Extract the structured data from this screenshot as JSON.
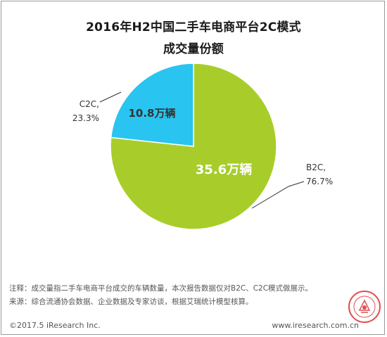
{
  "chart_data": {
    "type": "pie",
    "title_line1": "2016年H2中国二手车电商平台2C模式",
    "title_line2": "成交量份额",
    "slices": [
      {
        "name": "B2C,",
        "percent_label": "76.7%",
        "value": 35.6,
        "value_label": "35.6万辆",
        "share": 76.7,
        "color": "#a8cd2a"
      },
      {
        "name": "C2C,",
        "percent_label": "23.3%",
        "value": 10.8,
        "value_label": "10.8万辆",
        "share": 23.3,
        "color": "#29c4ef"
      }
    ]
  },
  "notes": {
    "note": "注释：成交量指二手车电商平台成交的车辆数量，本次报告数据仅对B2C、C2C模式做展示。",
    "source": "来源：综合流通协会数据、企业数据及专家访谈，根据艾瑞统计模型核算。"
  },
  "footer": {
    "copyright": "©2017.5 iResearch Inc.",
    "website": "www.iresearch.com.cn"
  },
  "seal_color": "#e05050"
}
